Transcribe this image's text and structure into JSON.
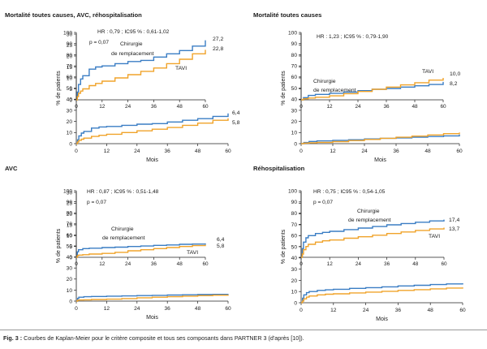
{
  "caption": {
    "label": "Fig. 3 :",
    "text": " Courbes de Kaplan-Meier pour le critère composite et tous ses composants dans PARTNER 3 (d'après [10])."
  },
  "colors": {
    "chirurgie": "#3a7dc4",
    "tavi": "#f0a32a",
    "axis": "#222222"
  },
  "chart_data": [
    {
      "type": "line",
      "title": "Mortalité toutes causes, AVC, réhospitalisation",
      "xlabel": "Mois",
      "ylabel": "% de patients",
      "xlim": [
        0,
        60
      ],
      "ylim": [
        0,
        100
      ],
      "xticks": [
        0,
        12,
        24,
        36,
        48,
        60
      ],
      "yticks": [
        0,
        10,
        20,
        30,
        40,
        50,
        60,
        70,
        80,
        90,
        100
      ],
      "series": [
        {
          "name": "Chirurgie de remplacement",
          "color_key": "chirurgie",
          "x": [
            0,
            0.5,
            1,
            2,
            3,
            6,
            9,
            12,
            18,
            24,
            30,
            36,
            42,
            48,
            54,
            60
          ],
          "values": [
            0,
            3.5,
            7,
            9.5,
            11,
            14,
            15,
            15.5,
            16.5,
            17.5,
            18,
            19.5,
            21,
            22.5,
            24.5,
            27.2
          ]
        },
        {
          "name": "TAVI",
          "color_key": "tavi",
          "x": [
            0,
            0.5,
            1,
            2,
            3,
            6,
            9,
            12,
            18,
            24,
            30,
            36,
            42,
            48,
            54,
            60
          ],
          "values": [
            0,
            1.5,
            3,
            4,
            5,
            6.5,
            7.5,
            8.5,
            10,
            11.5,
            13,
            14.5,
            16.5,
            18.5,
            21,
            22.8
          ]
        }
      ],
      "end_labels": [
        "27,2",
        "22,8",
        "6,4",
        "5,8"
      ],
      "inset": {
        "ylim": [
          0,
          30
        ],
        "yticks": [
          0,
          5,
          10,
          15,
          20,
          25,
          30
        ],
        "series_labels": [
          "Chirurgie de remplacement",
          "TAVI"
        ],
        "annotations": [
          "HR : 0,79 ; IC95 % : 0,61-1,02",
          "p = 0,07"
        ]
      }
    },
    {
      "type": "line",
      "title": "Mortalité toutes causes",
      "xlabel": "Mois",
      "ylabel": "% de patients",
      "xlim": [
        0,
        60
      ],
      "ylim": [
        0,
        100
      ],
      "xticks": [
        0,
        12,
        24,
        36,
        48,
        60
      ],
      "yticks": [
        0,
        10,
        20,
        30,
        40,
        50,
        60,
        70,
        80,
        90,
        100
      ],
      "series": [
        {
          "name": "Chirurgie de remplacement",
          "color_key": "chirurgie",
          "x": [
            0,
            1,
            3,
            6,
            12,
            18,
            24,
            30,
            36,
            42,
            48,
            54,
            60
          ],
          "values": [
            0,
            1,
            2,
            2.5,
            3,
            3.5,
            4.2,
            4.8,
            5.2,
            5.8,
            6.4,
            7,
            8.2
          ]
        },
        {
          "name": "TAVI",
          "color_key": "tavi",
          "x": [
            0,
            1,
            3,
            6,
            12,
            18,
            24,
            30,
            36,
            42,
            48,
            54,
            60
          ],
          "values": [
            0,
            0.5,
            0.8,
            1.2,
            1.8,
            2.8,
            3.8,
            4.8,
            5.8,
            6.8,
            7.8,
            9,
            10
          ]
        }
      ],
      "end_labels": [
        "10,0",
        "8,2"
      ],
      "inset": {
        "ylim": [
          0,
          30
        ],
        "yticks": [
          0,
          5,
          10,
          15,
          20,
          25,
          30
        ],
        "series_labels": [
          "Chirurgie de remplacement",
          "TAVI"
        ],
        "annotations": [
          "HR : 1,23 ; IC95 % : 0,79-1,90"
        ]
      }
    },
    {
      "type": "line",
      "title": "AVC",
      "xlabel": "Mois",
      "ylabel": "% de patients",
      "xlim": [
        0,
        60
      ],
      "ylim": [
        0,
        100
      ],
      "xticks": [
        0,
        12,
        24,
        36,
        48,
        60
      ],
      "yticks": [
        0,
        10,
        20,
        30,
        40,
        50,
        60,
        70,
        80,
        90,
        100
      ],
      "series": [
        {
          "name": "Chirurgie de remplacement",
          "color_key": "chirurgie",
          "x": [
            0,
            0.5,
            1,
            3,
            6,
            12,
            18,
            24,
            30,
            36,
            42,
            48,
            54,
            60
          ],
          "values": [
            0,
            2.5,
            3.5,
            4,
            4.2,
            4.5,
            4.7,
            5,
            5.2,
            5.5,
            5.7,
            6,
            6.1,
            6.4
          ]
        },
        {
          "name": "TAVI",
          "color_key": "tavi",
          "x": [
            0,
            0.5,
            1,
            3,
            6,
            12,
            18,
            24,
            30,
            36,
            42,
            48,
            54,
            60
          ],
          "values": [
            0,
            0.8,
            1,
            1.2,
            1.5,
            1.8,
            2.3,
            3,
            3.5,
            4,
            4.5,
            5,
            5.4,
            5.8
          ]
        }
      ],
      "end_labels": [
        "6,4",
        "5,8"
      ],
      "inset": {
        "ylim": [
          0,
          30
        ],
        "yticks": [
          0,
          5,
          10,
          15,
          20,
          25,
          30
        ],
        "series_labels": [
          "Chirurgie de remplacement",
          "TAVI"
        ],
        "annotations": [
          "HR : 0,87 ; IC95 % : 0,51-1,48",
          "p = 0,07"
        ]
      }
    },
    {
      "type": "line",
      "title": "Réhospitalisation",
      "xlabel": "Mois",
      "ylabel": "% de patients",
      "xlim": [
        0,
        60
      ],
      "ylim": [
        0,
        100
      ],
      "xticks": [
        0,
        12,
        24,
        36,
        48,
        60
      ],
      "yticks": [
        0,
        10,
        20,
        30,
        40,
        50,
        60,
        70,
        80,
        90,
        100
      ],
      "series": [
        {
          "name": "Chirurgie de remplacement",
          "color_key": "chirurgie",
          "x": [
            0,
            0.5,
            1,
            2,
            3,
            6,
            9,
            12,
            18,
            24,
            30,
            36,
            42,
            48,
            54,
            60
          ],
          "values": [
            0,
            4,
            7,
            9,
            10,
            11,
            11.5,
            12,
            12.8,
            13.5,
            14.2,
            15,
            15.6,
            16.2,
            16.8,
            17.4
          ]
        },
        {
          "name": "TAVI",
          "color_key": "tavi",
          "x": [
            0,
            0.5,
            1,
            2,
            3,
            6,
            9,
            12,
            18,
            24,
            30,
            36,
            42,
            48,
            54,
            60
          ],
          "values": [
            0,
            1.5,
            3.5,
            5,
            6,
            7,
            7.6,
            8,
            8.8,
            9.5,
            10.2,
            11,
            11.7,
            12.4,
            13.1,
            13.7
          ]
        }
      ],
      "end_labels": [
        "17,4",
        "13,7"
      ],
      "inset": {
        "ylim": [
          0,
          30
        ],
        "yticks": [
          0,
          5,
          10,
          15,
          20,
          25,
          30
        ],
        "series_labels": [
          "Chirurgie de remplacement",
          "TAVI"
        ],
        "annotations": [
          "HR : 0,75 ; IC95 % : 0,54-1,05",
          "p = 0,07"
        ]
      }
    }
  ]
}
